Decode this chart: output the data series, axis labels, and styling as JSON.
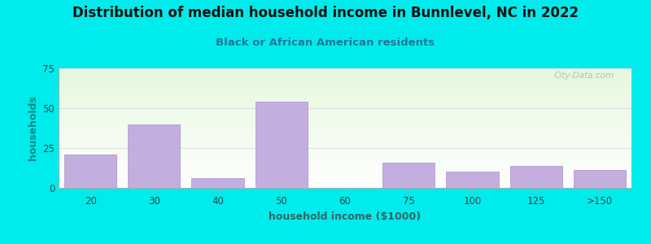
{
  "title": "Distribution of median household income in Bunnlevel, NC in 2022",
  "subtitle": "Black or African American residents",
  "xlabel": "household income ($1000)",
  "ylabel": "households",
  "title_fontsize": 12,
  "subtitle_fontsize": 9.5,
  "label_fontsize": 9,
  "tick_fontsize": 8.5,
  "categories": [
    "20",
    "30",
    "40",
    "50",
    "60",
    "75",
    "100",
    "125",
    ">150"
  ],
  "values": [
    21,
    40,
    6,
    54,
    0,
    16,
    10,
    14,
    11
  ],
  "bar_color": "#c4aee0",
  "bar_edgecolor": "#b09ccc",
  "background_color": "#00ecec",
  "ylabel_color": "#008888",
  "xlabel_color": "#336666",
  "title_color": "#111111",
  "subtitle_color": "#227799",
  "tick_color": "#334444",
  "ylim": [
    0,
    75
  ],
  "yticks": [
    0,
    25,
    50,
    75
  ],
  "grid_color": "#dddddd",
  "watermark": "City-Data.com"
}
